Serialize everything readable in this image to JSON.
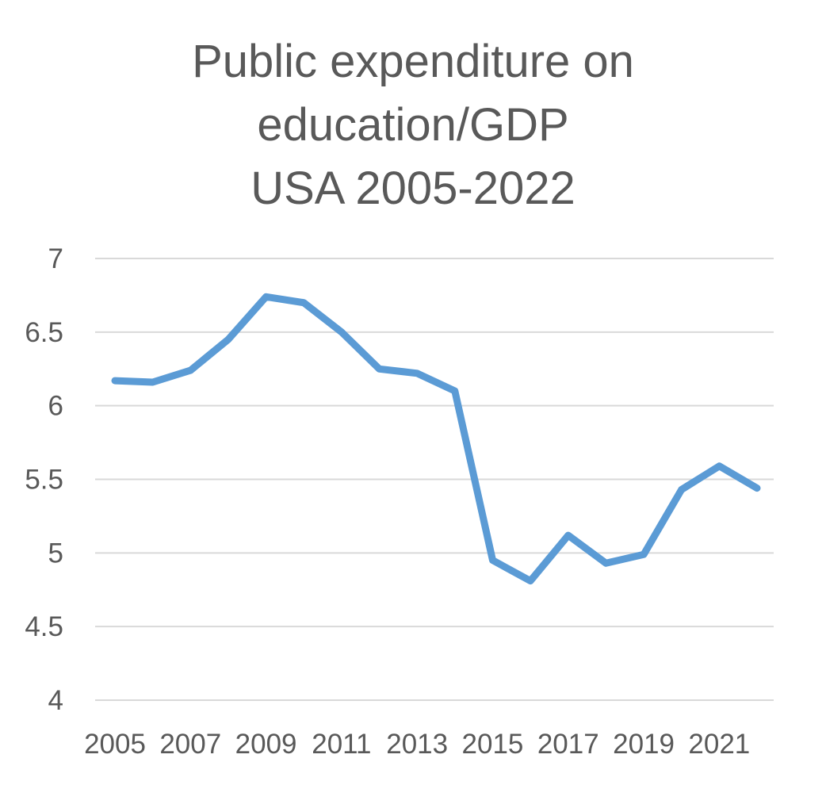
{
  "chart_data": {
    "type": "line",
    "title": [
      "Public expenditure on",
      "education/GDP",
      "USA 2005-2022"
    ],
    "xlabel": "",
    "ylabel": "",
    "x": [
      2005,
      2006,
      2007,
      2008,
      2009,
      2010,
      2011,
      2012,
      2013,
      2014,
      2015,
      2016,
      2017,
      2018,
      2019,
      2020,
      2021,
      2022
    ],
    "x_tick_labels": [
      "2005",
      "2007",
      "2009",
      "2011",
      "2013",
      "2015",
      "2017",
      "2019",
      "2021"
    ],
    "series": [
      {
        "values": [
          6.17,
          6.16,
          6.24,
          6.45,
          6.74,
          6.7,
          6.5,
          6.25,
          6.22,
          6.1,
          4.95,
          4.81,
          5.12,
          4.93,
          4.99,
          5.43,
          5.59,
          5.44
        ],
        "color": "#5B9BD5"
      }
    ],
    "ylim": [
      4,
      7
    ],
    "y_tick_labels": [
      "4",
      "4.5",
      "5",
      "5.5",
      "6",
      "6.5",
      "7"
    ],
    "grid": true,
    "legend": "none"
  }
}
